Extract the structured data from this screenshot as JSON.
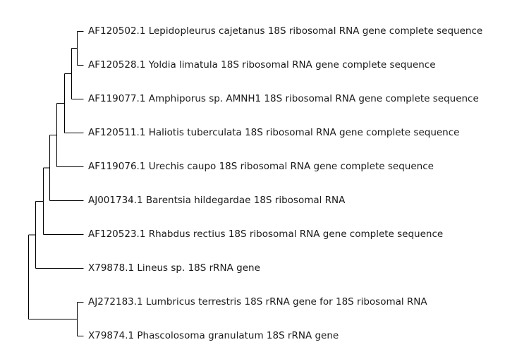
{
  "tree": {
    "leaves": [
      {
        "id": "L1",
        "label": "AF120502.1 Lepidopleurus cajetanus 18S ribosomal RNA gene complete sequence"
      },
      {
        "id": "L2",
        "label": "AF120528.1 Yoldia limatula 18S ribosomal RNA gene complete sequence"
      },
      {
        "id": "L3",
        "label": "AF119077.1 Amphiporus sp. AMNH1 18S ribosomal RNA gene complete sequence"
      },
      {
        "id": "L4",
        "label": "AF120511.1 Haliotis tuberculata 18S ribosomal RNA gene complete sequence"
      },
      {
        "id": "L5",
        "label": "AF119076.1 Urechis caupo 18S ribosomal RNA gene complete sequence"
      },
      {
        "id": "L6",
        "label": "AJ001734.1 Barentsia hildegardae 18S ribosomal RNA"
      },
      {
        "id": "L7",
        "label": "AF120523.1 Rhabdus rectius 18S ribosomal RNA gene complete sequence"
      },
      {
        "id": "L8",
        "label": "X79878.1 Lineus sp. 18S rRNA gene"
      },
      {
        "id": "L9",
        "label": "AJ272183.1 Lumbricus terrestris 18S rRNA gene for 18S ribosomal RNA"
      },
      {
        "id": "L10",
        "label": "X79874.1 Phascolosoma granulatum 18S rRNA gene"
      }
    ],
    "newick": "((((((((L1,L2),L3),L4),L5),L6),L7),L8),(L9,L10));"
  }
}
